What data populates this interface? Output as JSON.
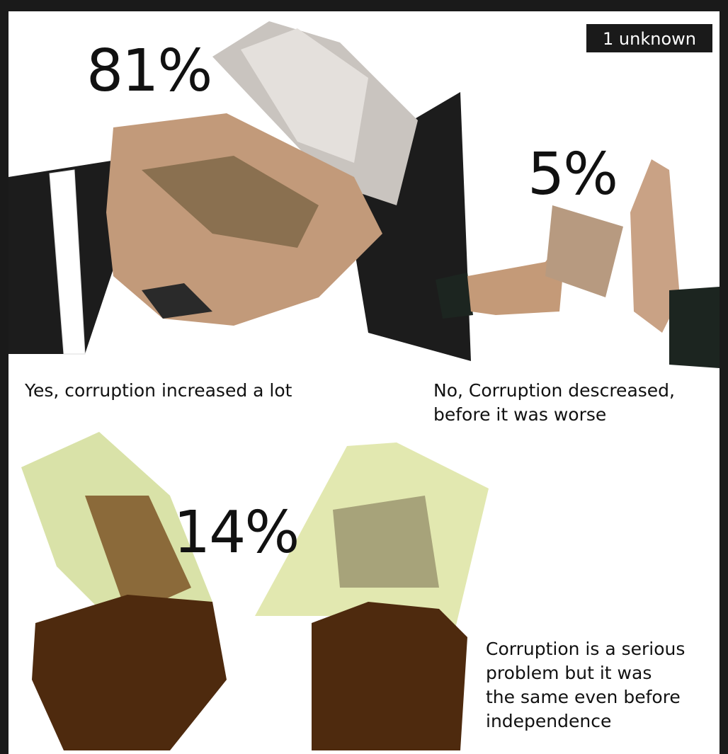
{
  "badge": "1 unknown",
  "items": [
    {
      "percent": "81%",
      "caption": [
        "Yes, corruption increased a lot"
      ]
    },
    {
      "percent": "5%",
      "caption": [
        "No, Corruption descreased,",
        "before it was worse"
      ]
    },
    {
      "percent": "14%",
      "caption": [
        "Corruption is a serious",
        "problem but it was",
        "the same even before",
        "independence"
      ]
    }
  ]
}
